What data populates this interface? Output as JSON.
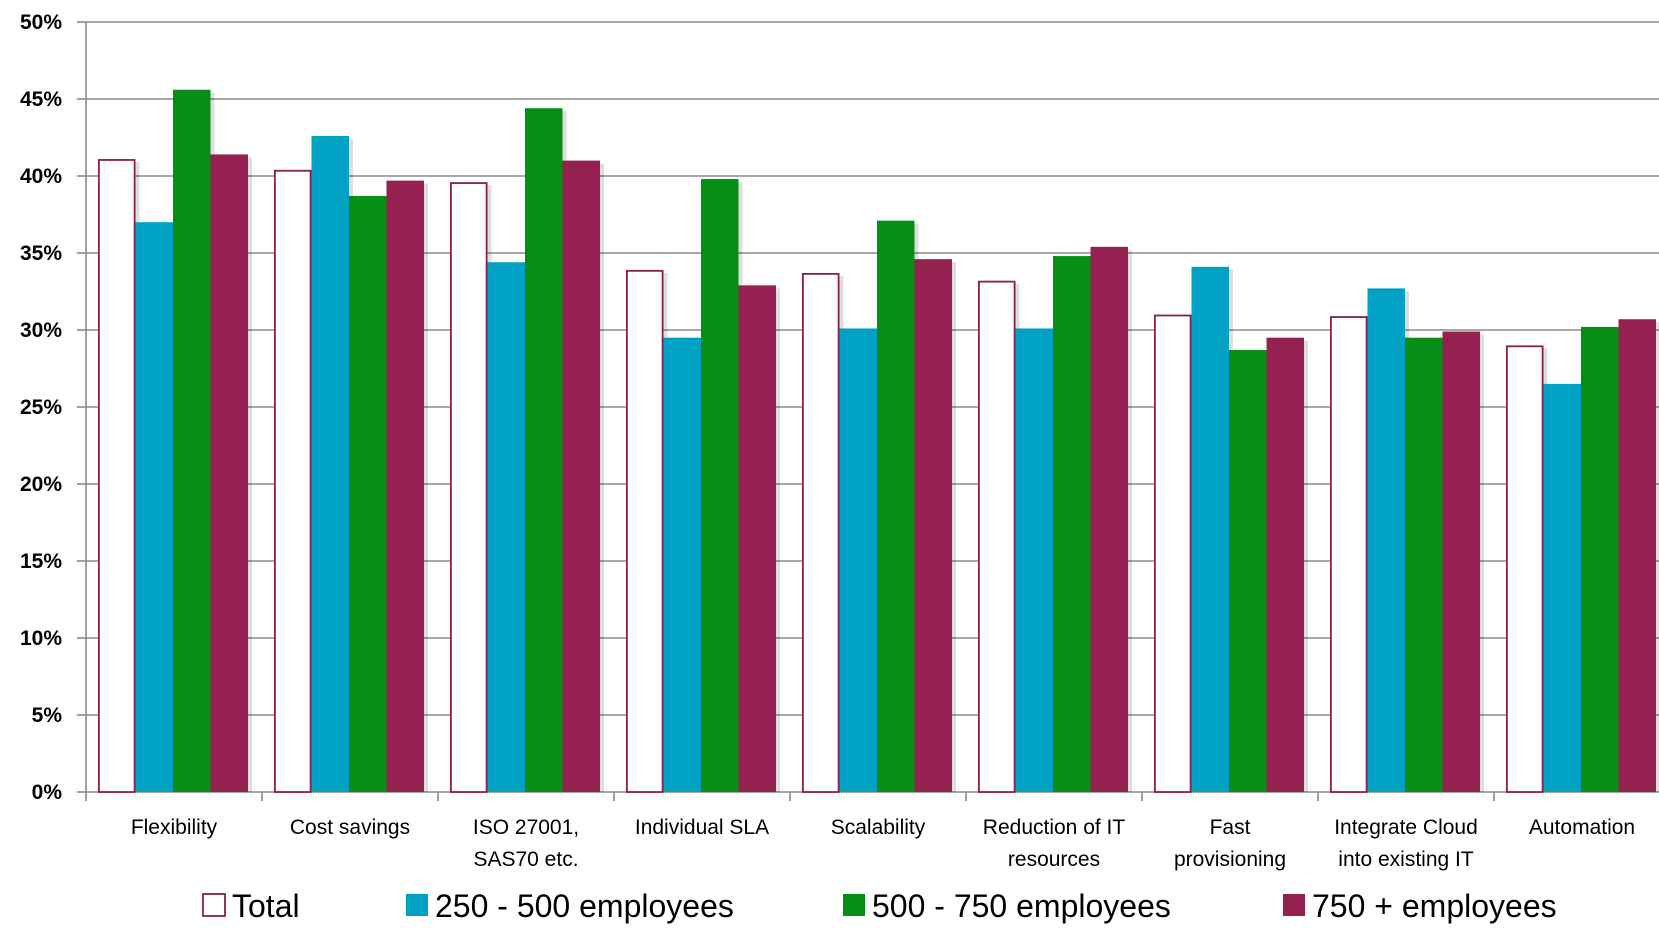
{
  "chart_data": {
    "type": "bar",
    "categories": [
      "Flexibility",
      "Cost savings",
      "ISO 27001,\nSAS70 etc.",
      "Individual SLA",
      "Scalability",
      "Reduction of IT\nresources",
      "Fast\nprovisioning",
      "Integrate Cloud\ninto existing IT",
      "Automation"
    ],
    "series": [
      {
        "name": "Total",
        "color": "#ffffff",
        "stroke": "#8b1e4e",
        "values": [
          41.1,
          40.4,
          39.6,
          33.9,
          33.7,
          33.2,
          31.0,
          30.9,
          29.0
        ]
      },
      {
        "name": "250 - 500 employees",
        "color": "#00a2c4",
        "values": [
          37.0,
          42.6,
          34.4,
          29.5,
          30.1,
          30.1,
          34.1,
          32.7,
          26.5
        ]
      },
      {
        "name": "500 - 750 employees",
        "color": "#068e16",
        "values": [
          45.6,
          38.7,
          44.4,
          39.8,
          37.1,
          34.8,
          28.7,
          29.5,
          30.2
        ]
      },
      {
        "name": "750 + employees",
        "color": "#94214f",
        "values": [
          41.4,
          39.7,
          41.0,
          32.9,
          34.6,
          35.4,
          29.5,
          29.9,
          30.7
        ]
      }
    ],
    "ylim": [
      0,
      50
    ],
    "yticks": [
      "0%",
      "5%",
      "10%",
      "15%",
      "20%",
      "25%",
      "30%",
      "35%",
      "40%",
      "45%",
      "50%"
    ],
    "title": "",
    "xlabel": "",
    "ylabel": "",
    "grid": true,
    "legend_position": "bottom"
  }
}
